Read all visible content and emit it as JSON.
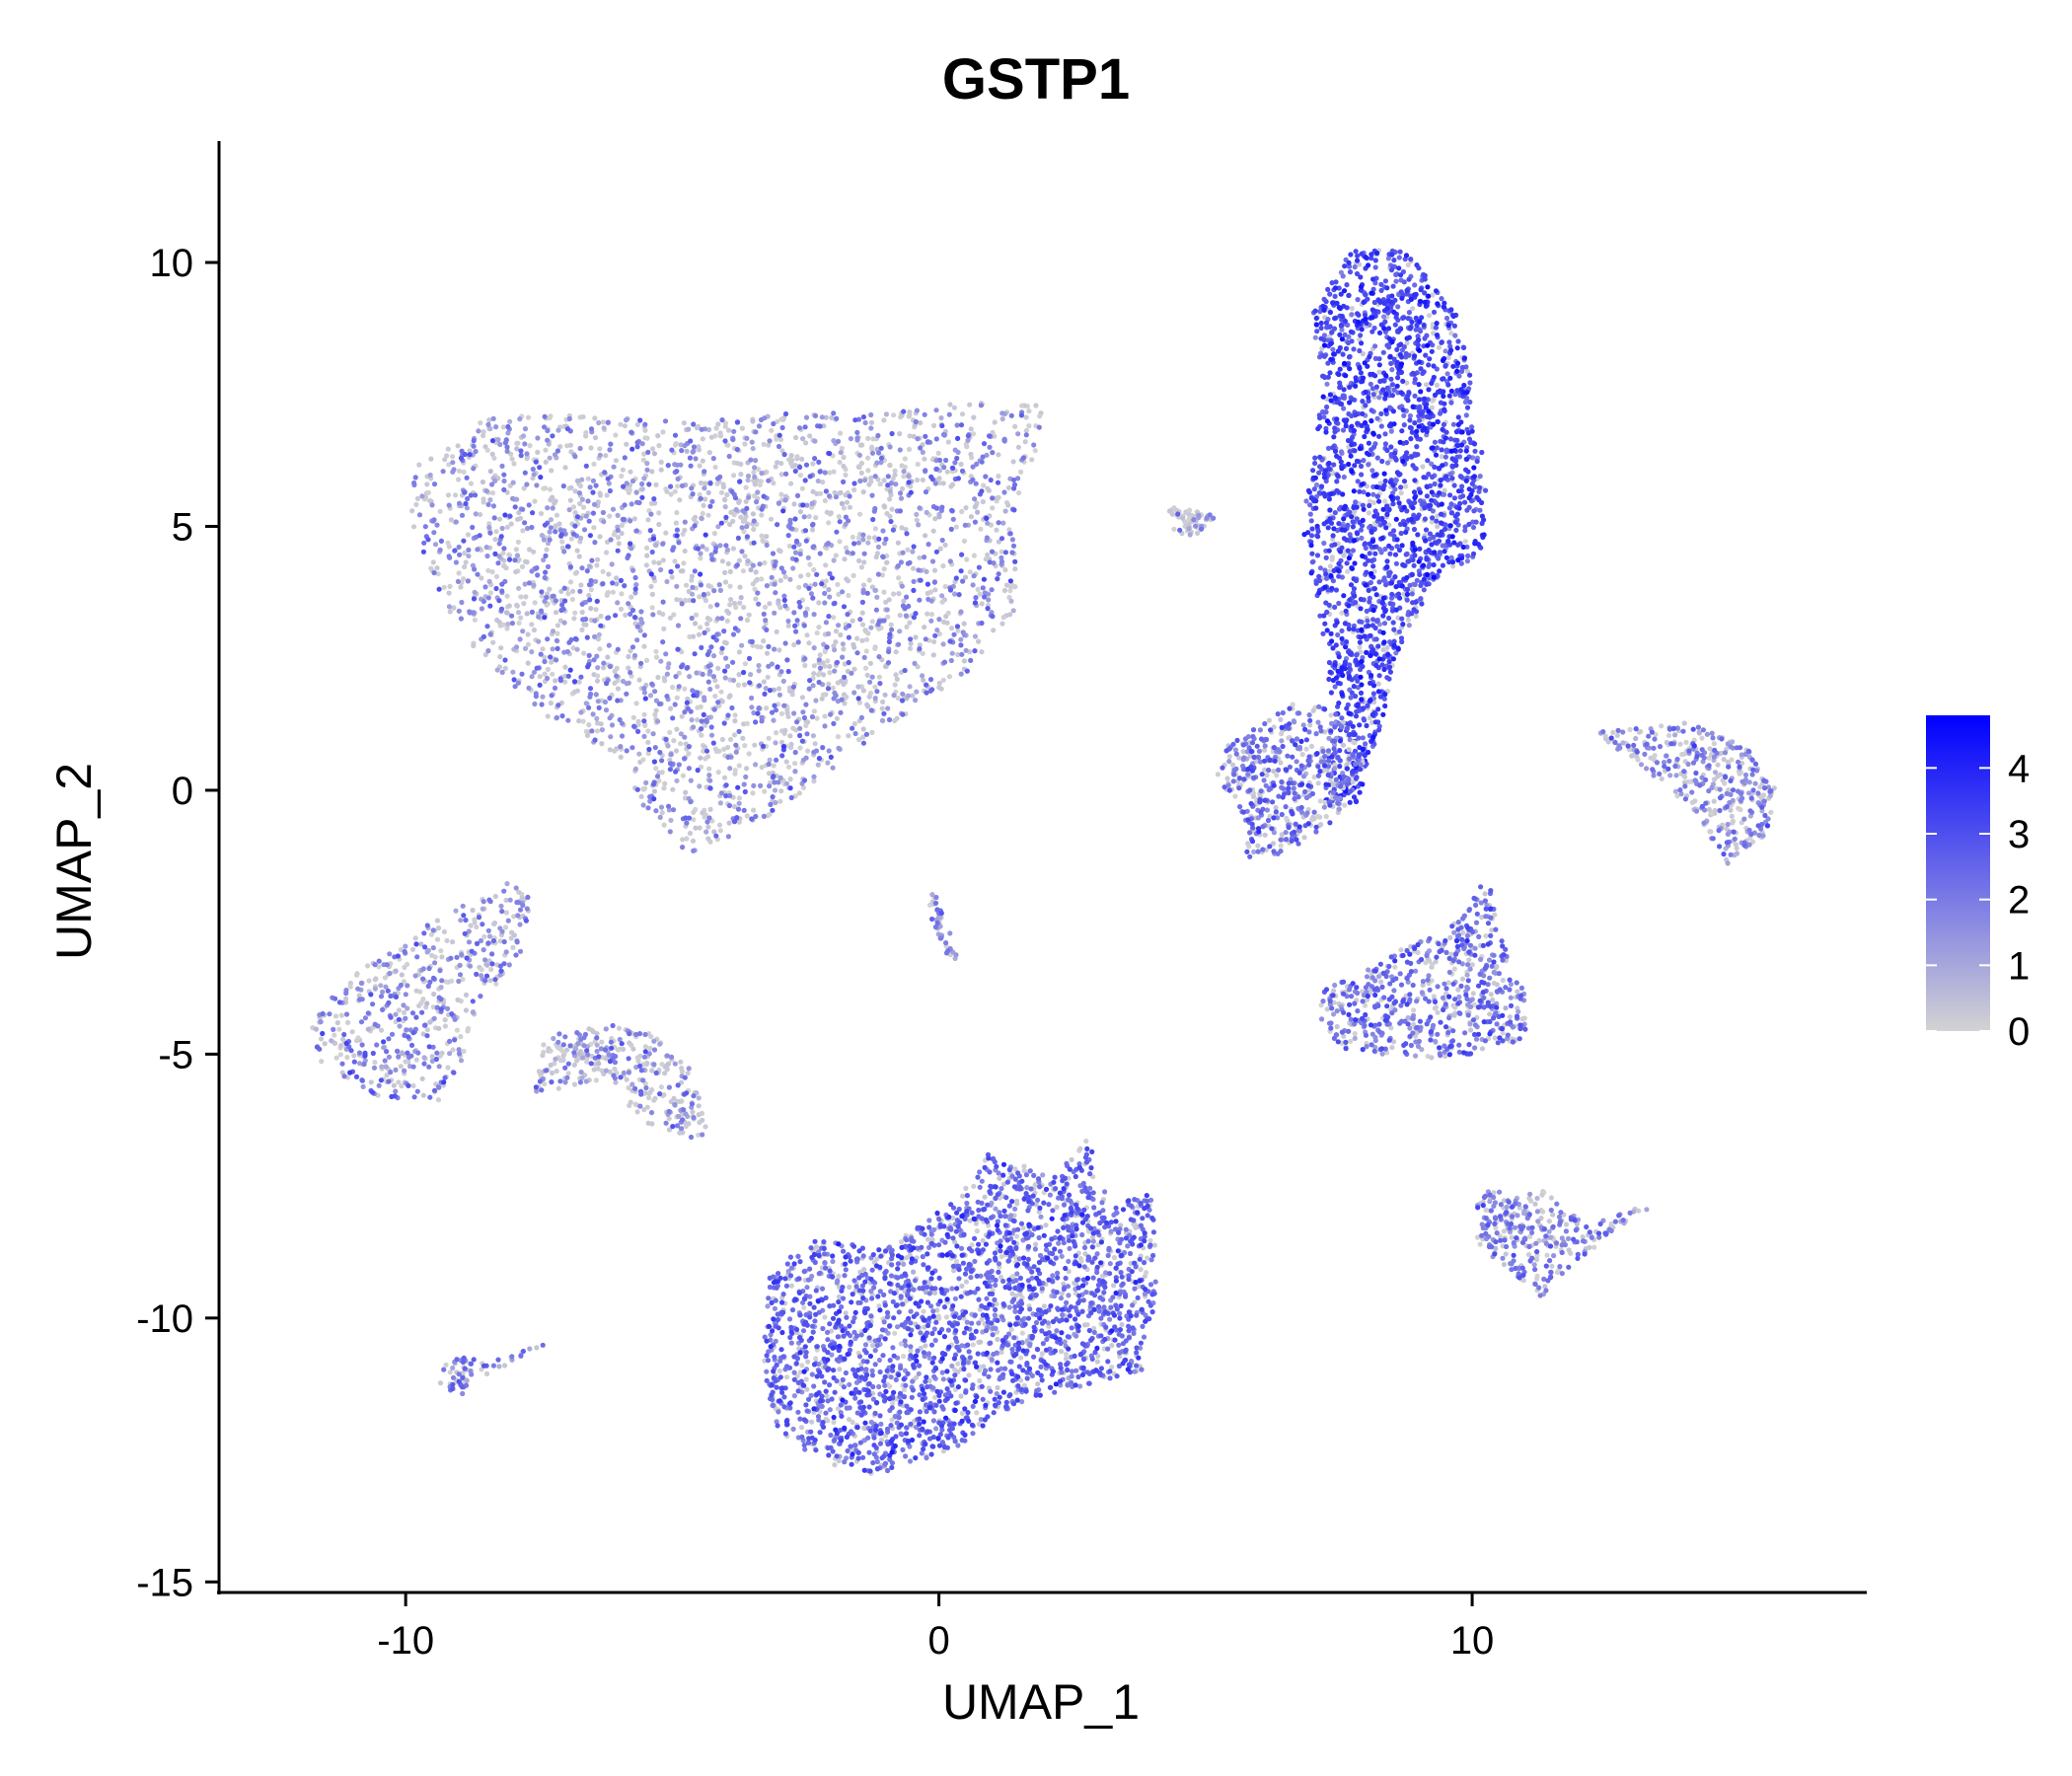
{
  "chart_data": {
    "type": "scatter",
    "title": "GSTP1",
    "xlabel": "UMAP_1",
    "ylabel": "UMAP_2",
    "xlim": [
      -13.5,
      17.4
    ],
    "ylim": [
      -15.2,
      12.3
    ],
    "x_ticks": [
      -10,
      0,
      10
    ],
    "x_tick_labels": [
      "-10",
      "0",
      "10"
    ],
    "y_ticks": [
      10,
      5,
      0,
      -5,
      -10,
      -15
    ],
    "y_tick_labels": [
      "10",
      "5",
      "0",
      "-5",
      "-10",
      "-15"
    ],
    "grid": false,
    "legend": {
      "type": "colorbar",
      "placement": "right",
      "range": [
        0,
        4.8
      ],
      "ticks": [
        4,
        3,
        2,
        1,
        0
      ],
      "tick_labels": [
        "4",
        "3",
        "2",
        "1",
        "0"
      ],
      "colors": [
        "#d3d3d3",
        "#0000ff"
      ]
    },
    "clusters": [
      {
        "name": "upper-left large",
        "hull": [
          [
            -10,
            5.3
          ],
          [
            -9.7,
            6.4
          ],
          [
            -8.5,
            7.1
          ],
          [
            -7,
            7.1
          ],
          [
            -5,
            7
          ],
          [
            -2,
            7.2
          ],
          [
            2,
            7.4
          ],
          [
            1.8,
            6.4
          ],
          [
            1.4,
            5.2
          ],
          [
            1.5,
            3.5
          ],
          [
            0.5,
            2.2
          ],
          [
            -1.5,
            0.8
          ],
          [
            -3.3,
            -0.6
          ],
          [
            -4.7,
            -1.2
          ],
          [
            -5.4,
            -0.5
          ],
          [
            -6.2,
            0.7
          ],
          [
            -7.5,
            1.5
          ],
          [
            -9,
            3
          ],
          [
            -9.6,
            4.3
          ]
        ],
        "n": 3000,
        "p_low": 0.5,
        "mean_high": 1.8
      },
      {
        "name": "upper-right elongated",
        "hull": [
          [
            6.8,
            5
          ],
          [
            7.2,
            7.5
          ],
          [
            7,
            9
          ],
          [
            7.7,
            10.3
          ],
          [
            8.8,
            10.2
          ],
          [
            9.7,
            9
          ],
          [
            10.1,
            7.3
          ],
          [
            10.3,
            5.3
          ],
          [
            10.2,
            4.5
          ],
          [
            9.3,
            4
          ],
          [
            8.6,
            2.6
          ],
          [
            8.3,
            1.3
          ],
          [
            8,
            0.2
          ],
          [
            7.8,
            -0.3
          ],
          [
            7.2,
            -0.2
          ],
          [
            7.4,
            1.4
          ],
          [
            7.2,
            3
          ],
          [
            7,
            4
          ]
        ],
        "n": 2100,
        "p_low": 0.1,
        "mean_high": 3.1
      },
      {
        "name": "middle bridge",
        "hull": [
          [
            4.3,
            5.4
          ],
          [
            5.2,
            5.2
          ],
          [
            4.8,
            4.8
          ],
          [
            4.4,
            4.9
          ]
        ],
        "n": 60,
        "p_low": 0.7,
        "mean_high": 1.2
      },
      {
        "name": "lower-middle blob",
        "hull": [
          [
            5.6,
            1
          ],
          [
            6.7,
            1.7
          ],
          [
            7.5,
            1.5
          ],
          [
            8,
            0.5
          ],
          [
            7.5,
            -0.5
          ],
          [
            6.5,
            -1.2
          ],
          [
            5.8,
            -1.3
          ],
          [
            5.6,
            -0.2
          ],
          [
            5.2,
            0.2
          ],
          [
            5.4,
            0.9
          ]
        ],
        "n": 500,
        "p_low": 0.35,
        "mean_high": 2.3
      },
      {
        "name": "right crescent",
        "hull": [
          [
            12.3,
            1.1
          ],
          [
            14,
            1.3
          ],
          [
            15.2,
            0.8
          ],
          [
            15.7,
            0
          ],
          [
            15.5,
            -0.9
          ],
          [
            14.8,
            -1.4
          ],
          [
            14.2,
            -0.5
          ],
          [
            13.5,
            0.2
          ],
          [
            12.8,
            0.7
          ]
        ],
        "n": 380,
        "p_low": 0.4,
        "mean_high": 1.8
      },
      {
        "name": "right middle fan",
        "hull": [
          [
            7.2,
            -3.8
          ],
          [
            8.5,
            -3.1
          ],
          [
            9.6,
            -2.6
          ],
          [
            10.3,
            -1.6
          ],
          [
            10.5,
            -2.7
          ],
          [
            11,
            -3.9
          ],
          [
            11,
            -4.7
          ],
          [
            10,
            -5
          ],
          [
            9,
            -5.1
          ],
          [
            7.6,
            -4.9
          ],
          [
            7.1,
            -4.4
          ]
        ],
        "n": 620,
        "p_low": 0.25,
        "mean_high": 2.2
      },
      {
        "name": "right lower",
        "hull": [
          [
            10.1,
            -7.6
          ],
          [
            10.7,
            -7.6
          ],
          [
            11.5,
            -7.6
          ],
          [
            12.1,
            -8.2
          ],
          [
            13.5,
            -7.8
          ],
          [
            12.1,
            -8.8
          ],
          [
            11.3,
            -9.6
          ],
          [
            10.8,
            -9.2
          ],
          [
            10.1,
            -8.6
          ]
        ],
        "n": 300,
        "p_low": 0.35,
        "mean_high": 1.9
      },
      {
        "name": "bottom large",
        "hull": [
          [
            -3.2,
            -9.2
          ],
          [
            -2.4,
            -8.5
          ],
          [
            -1,
            -8.7
          ],
          [
            0.4,
            -7.7
          ],
          [
            0.9,
            -6.9
          ],
          [
            2.2,
            -7.3
          ],
          [
            2.8,
            -6.6
          ],
          [
            3.2,
            -7.9
          ],
          [
            4,
            -7.6
          ],
          [
            4.1,
            -9.4
          ],
          [
            3.8,
            -11
          ],
          [
            3,
            -11.2
          ],
          [
            1.5,
            -11.6
          ],
          [
            0.4,
            -12.4
          ],
          [
            -1,
            -13
          ],
          [
            -2,
            -12.8
          ],
          [
            -3,
            -12.2
          ],
          [
            -3.3,
            -11
          ]
        ],
        "n": 2600,
        "p_low": 0.2,
        "mean_high": 2.5
      },
      {
        "name": "left small",
        "hull": [
          [
            -10.6,
            -5.8
          ],
          [
            -9.4,
            -5.9
          ],
          [
            -9,
            -5.3
          ],
          [
            -8.7,
            -4.2
          ],
          [
            -7.9,
            -3.3
          ],
          [
            -7.6,
            -2.1
          ],
          [
            -8.1,
            -1.7
          ],
          [
            -9.5,
            -2.5
          ],
          [
            -11,
            -3.5
          ],
          [
            -11.8,
            -4.4
          ],
          [
            -11.6,
            -5.2
          ]
        ],
        "n": 520,
        "p_low": 0.5,
        "mean_high": 1.9
      },
      {
        "name": "left mid",
        "hull": [
          [
            -7.6,
            -5.8
          ],
          [
            -6.3,
            -5.5
          ],
          [
            -5.5,
            -6.3
          ],
          [
            -4.3,
            -6.7
          ],
          [
            -4.5,
            -5.8
          ],
          [
            -4.7,
            -5.2
          ],
          [
            -5.4,
            -4.6
          ],
          [
            -6.4,
            -4.4
          ],
          [
            -7.4,
            -4.7
          ]
        ],
        "n": 320,
        "p_low": 0.55,
        "mean_high": 1.8
      },
      {
        "name": "left tiny",
        "hull": [
          [
            -9.5,
            -10.9
          ],
          [
            -9,
            -10.7
          ],
          [
            -8.5,
            -10.8
          ],
          [
            -7.4,
            -10.5
          ],
          [
            -8.7,
            -11.2
          ],
          [
            -9,
            -11.5
          ],
          [
            -9.4,
            -11.3
          ]
        ],
        "n": 65,
        "p_low": 0.4,
        "mean_high": 2.0
      },
      {
        "name": "center sliver",
        "hull": [
          [
            -0.2,
            -1.9
          ],
          [
            0.05,
            -2.1
          ],
          [
            0.35,
            -3.2
          ],
          [
            0.2,
            -3.3
          ],
          [
            -0.15,
            -2.4
          ]
        ],
        "n": 45,
        "p_low": 0.4,
        "mean_high": 1.5
      }
    ]
  }
}
